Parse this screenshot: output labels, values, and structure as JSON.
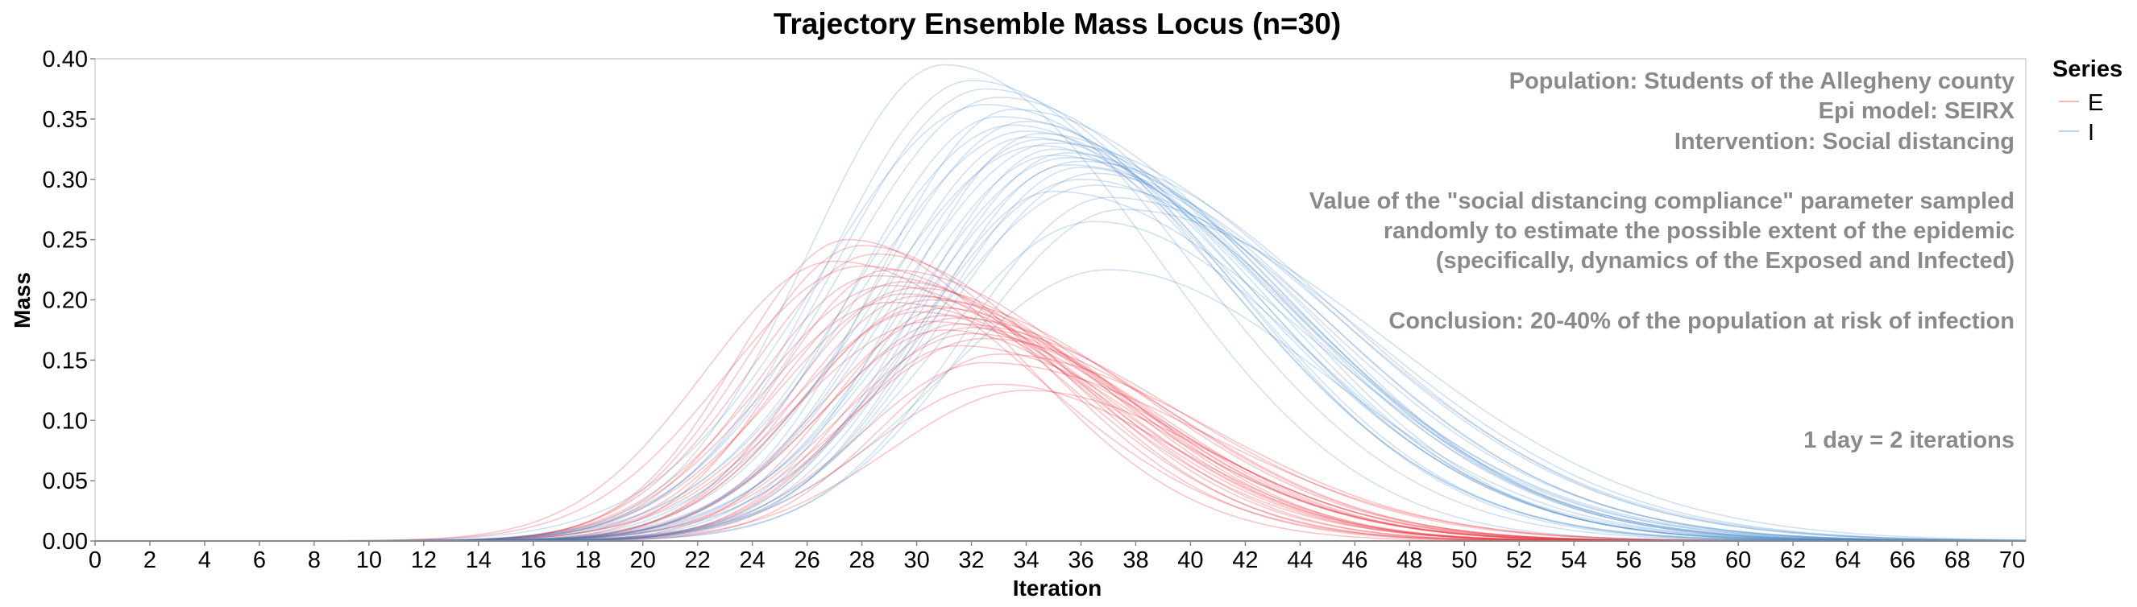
{
  "chart_data": {
    "type": "line",
    "title": "Trajectory Ensemble Mass Locus (n=30)",
    "xlabel": "Iteration",
    "ylabel": "Mass",
    "xlim": [
      0,
      70.5
    ],
    "ylim": [
      0,
      0.4
    ],
    "x_ticks": [
      "0",
      "2",
      "4",
      "6",
      "8",
      "10",
      "12",
      "14",
      "16",
      "18",
      "20",
      "22",
      "24",
      "26",
      "28",
      "30",
      "32",
      "34",
      "36",
      "38",
      "40",
      "42",
      "44",
      "46",
      "48",
      "50",
      "52",
      "54",
      "56",
      "58",
      "60",
      "62",
      "64",
      "66",
      "68",
      "70"
    ],
    "y_ticks": [
      "0.00",
      "0.05",
      "0.10",
      "0.15",
      "0.20",
      "0.25",
      "0.30",
      "0.35",
      "0.40"
    ],
    "grid": false,
    "legend": {
      "title": "Series",
      "placement": "right",
      "entries": [
        {
          "label": "E",
          "color": "#e8323c"
        },
        {
          "label": "I",
          "color": "#3c82c3"
        }
      ]
    },
    "annotations": [
      "Population: Students of the Allegheny county",
      "Epi model: SEIRX",
      "Intervention: Social distancing",
      "Value of the \"social distancing compliance\" parameter sampled",
      "randomly to estimate the possible extent of the epidemic",
      "(specifically, dynamics of the Exposed and Infected)",
      "Conclusion: 20-40% of the population at risk of infection",
      "1 day = 2 iterations"
    ],
    "series": [
      {
        "name": "E",
        "color": "#e8323c",
        "peaks": [
          {
            "x": 27.5,
            "y": 0.25
          },
          {
            "x": 28.0,
            "y": 0.245
          },
          {
            "x": 28.5,
            "y": 0.238
          },
          {
            "x": 27.0,
            "y": 0.232
          },
          {
            "x": 28.0,
            "y": 0.228
          },
          {
            "x": 29.0,
            "y": 0.225
          },
          {
            "x": 28.5,
            "y": 0.22
          },
          {
            "x": 29.5,
            "y": 0.215
          },
          {
            "x": 29.0,
            "y": 0.212
          },
          {
            "x": 30.0,
            "y": 0.21
          },
          {
            "x": 29.5,
            "y": 0.205
          },
          {
            "x": 30.0,
            "y": 0.203
          },
          {
            "x": 30.5,
            "y": 0.2
          },
          {
            "x": 29.0,
            "y": 0.198
          },
          {
            "x": 30.5,
            "y": 0.195
          },
          {
            "x": 31.0,
            "y": 0.193
          },
          {
            "x": 30.0,
            "y": 0.19
          },
          {
            "x": 31.0,
            "y": 0.187
          },
          {
            "x": 31.5,
            "y": 0.185
          },
          {
            "x": 30.5,
            "y": 0.182
          },
          {
            "x": 31.5,
            "y": 0.18
          },
          {
            "x": 32.0,
            "y": 0.177
          },
          {
            "x": 31.0,
            "y": 0.175
          },
          {
            "x": 32.0,
            "y": 0.172
          },
          {
            "x": 32.5,
            "y": 0.168
          },
          {
            "x": 31.5,
            "y": 0.162
          },
          {
            "x": 33.0,
            "y": 0.155
          },
          {
            "x": 32.5,
            "y": 0.148
          },
          {
            "x": 33.0,
            "y": 0.13
          },
          {
            "x": 34.0,
            "y": 0.125
          }
        ]
      },
      {
        "name": "I",
        "color": "#3c82c3",
        "peaks": [
          {
            "x": 31.0,
            "y": 0.395
          },
          {
            "x": 32.0,
            "y": 0.382
          },
          {
            "x": 32.5,
            "y": 0.375
          },
          {
            "x": 33.0,
            "y": 0.368
          },
          {
            "x": 32.5,
            "y": 0.362
          },
          {
            "x": 33.5,
            "y": 0.358
          },
          {
            "x": 33.0,
            "y": 0.352
          },
          {
            "x": 34.0,
            "y": 0.348
          },
          {
            "x": 33.5,
            "y": 0.345
          },
          {
            "x": 34.0,
            "y": 0.34
          },
          {
            "x": 34.5,
            "y": 0.338
          },
          {
            "x": 34.0,
            "y": 0.335
          },
          {
            "x": 34.5,
            "y": 0.333
          },
          {
            "x": 35.0,
            "y": 0.33
          },
          {
            "x": 34.5,
            "y": 0.328
          },
          {
            "x": 35.0,
            "y": 0.325
          },
          {
            "x": 35.5,
            "y": 0.322
          },
          {
            "x": 35.0,
            "y": 0.32
          },
          {
            "x": 35.5,
            "y": 0.318
          },
          {
            "x": 36.0,
            "y": 0.315
          },
          {
            "x": 35.5,
            "y": 0.312
          },
          {
            "x": 36.0,
            "y": 0.31
          },
          {
            "x": 36.5,
            "y": 0.305
          },
          {
            "x": 36.0,
            "y": 0.3
          },
          {
            "x": 36.5,
            "y": 0.295
          },
          {
            "x": 35.0,
            "y": 0.29
          },
          {
            "x": 37.0,
            "y": 0.285
          },
          {
            "x": 37.5,
            "y": 0.275
          },
          {
            "x": 36.5,
            "y": 0.265
          },
          {
            "x": 37.0,
            "y": 0.225
          }
        ]
      }
    ]
  }
}
